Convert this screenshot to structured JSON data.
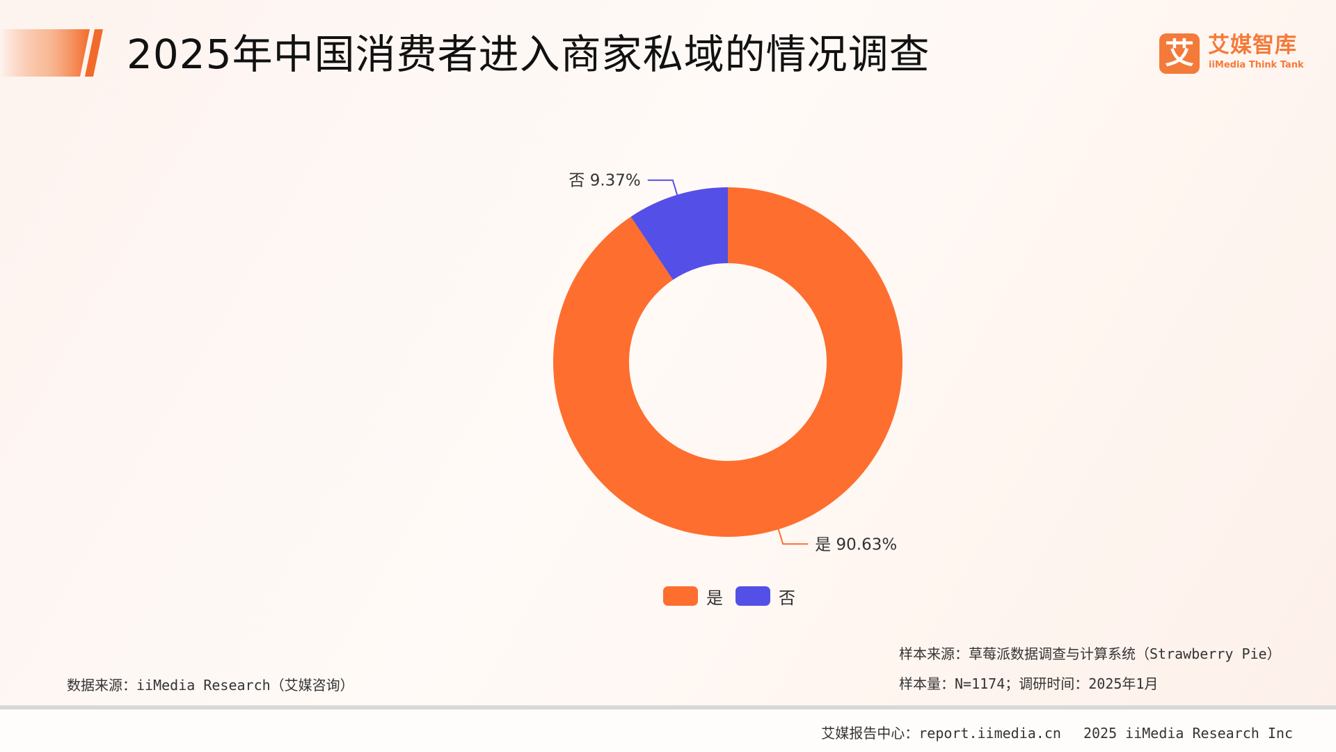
{
  "header": {
    "title": "2025年中国消费者进入商家私域的情况调查",
    "accent_color": "#f47a3a"
  },
  "logo": {
    "mark": "艾",
    "name_cn": "艾媒智库",
    "name_en": "iiMedia Think Tank"
  },
  "chart_data": {
    "type": "pie",
    "donut": true,
    "title": "",
    "slices": [
      {
        "label": "是",
        "value": 90.63,
        "value_label": "90.63%",
        "color": "#fe6e2e"
      },
      {
        "label": "否",
        "value": 9.37,
        "value_label": "9.37%",
        "color": "#544fe6"
      }
    ],
    "legend": {
      "position": "bottom-center",
      "entries": [
        "是",
        "否"
      ]
    }
  },
  "footnotes": {
    "data_source": "数据来源：iiMedia Research（艾媒咨询）",
    "sample_source": "样本来源：草莓派数据调查与计算系统（Strawberry Pie）",
    "sample_size": "样本量：N=1174；调研时间：2025年1月"
  },
  "footer": {
    "text": "艾媒报告中心：report.iimedia.cn　 2025 iiMedia Research Inc"
  }
}
